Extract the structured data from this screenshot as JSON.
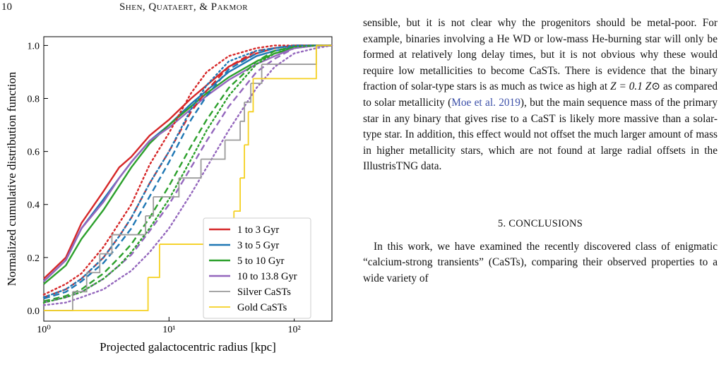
{
  "header": {
    "page_number": "10",
    "running_head": "Shen, Quataert, & Pakmor"
  },
  "chart_data": {
    "type": "line",
    "xlabel": "Projected galactocentric radius [kpc]",
    "ylabel": "Normalized cumulative distribution function",
    "xscale": "log",
    "xlim": [
      1,
      200
    ],
    "ylim": [
      -0.04,
      1.033
    ],
    "xticks": [
      {
        "value": 1,
        "label": "10⁰"
      },
      {
        "value": 10,
        "label": "10¹"
      },
      {
        "value": 100,
        "label": "10²"
      }
    ],
    "yticks": [
      {
        "value": 0,
        "label": "0.0"
      },
      0.2,
      0.4,
      0.6,
      0.8,
      {
        "value": 1,
        "label": "1.0"
      }
    ],
    "legend": "lower right",
    "x": [
      1,
      1.5,
      2,
      3,
      4,
      5,
      7,
      10,
      15,
      20,
      30,
      50,
      70,
      100,
      150,
      200
    ],
    "series": [
      {
        "name": "1 to 3 Gyr",
        "color": "#d62728",
        "dash": "solid",
        "values": [
          0.12,
          0.2,
          0.33,
          0.45,
          0.54,
          0.58,
          0.66,
          0.72,
          0.8,
          0.85,
          0.92,
          0.97,
          0.99,
          1,
          1,
          1
        ]
      },
      {
        "name": "3 to 5 Gyr",
        "color": "#1f77b4",
        "dash": "solid",
        "values": [
          0.11,
          0.19,
          0.31,
          0.42,
          0.5,
          0.56,
          0.64,
          0.7,
          0.78,
          0.83,
          0.9,
          0.96,
          0.98,
          0.995,
          1,
          1
        ]
      },
      {
        "name": "5 to 10 Gyr",
        "color": "#2ca02c",
        "dash": "solid",
        "values": [
          0.1,
          0.17,
          0.27,
          0.38,
          0.47,
          0.54,
          0.63,
          0.7,
          0.77,
          0.82,
          0.88,
          0.94,
          0.97,
          0.99,
          1,
          1
        ]
      },
      {
        "name": "10 to 13.8 Gyr",
        "color": "#9467bd",
        "dash": "solid",
        "values": [
          0.11,
          0.19,
          0.31,
          0.41,
          0.5,
          0.56,
          0.64,
          0.69,
          0.76,
          0.81,
          0.87,
          0.93,
          0.96,
          0.99,
          1,
          1
        ]
      },
      {
        "color": "#d62728",
        "dash": "dashed",
        "values": [
          0.05,
          0.08,
          0.12,
          0.2,
          0.28,
          0.35,
          0.48,
          0.6,
          0.75,
          0.83,
          0.92,
          0.98,
          0.99,
          1,
          1,
          1
        ]
      },
      {
        "color": "#1f77b4",
        "dash": "dashed",
        "values": [
          0.045,
          0.07,
          0.11,
          0.18,
          0.25,
          0.31,
          0.43,
          0.56,
          0.72,
          0.81,
          0.91,
          0.97,
          0.99,
          1,
          1,
          1
        ]
      },
      {
        "color": "#2ca02c",
        "dash": "dashed",
        "values": [
          0.035,
          0.055,
          0.08,
          0.14,
          0.2,
          0.25,
          0.35,
          0.47,
          0.62,
          0.72,
          0.84,
          0.94,
          0.98,
          0.995,
          1,
          1
        ]
      },
      {
        "color": "#9467bd",
        "dash": "dashed",
        "values": [
          0.03,
          0.05,
          0.07,
          0.12,
          0.17,
          0.21,
          0.3,
          0.4,
          0.54,
          0.64,
          0.77,
          0.9,
          0.95,
          0.99,
          1,
          1
        ]
      },
      {
        "color": "#d62728",
        "dash": "dotted",
        "values": [
          0.06,
          0.1,
          0.14,
          0.24,
          0.33,
          0.4,
          0.55,
          0.67,
          0.82,
          0.9,
          0.96,
          0.99,
          1,
          1,
          1,
          1
        ]
      },
      {
        "color": "#1f77b4",
        "dash": "dotted",
        "values": [
          0.05,
          0.08,
          0.12,
          0.2,
          0.28,
          0.35,
          0.48,
          0.6,
          0.76,
          0.85,
          0.94,
          0.98,
          0.99,
          1,
          1,
          1
        ]
      },
      {
        "color": "#2ca02c",
        "dash": "dotted",
        "values": [
          0.03,
          0.05,
          0.07,
          0.12,
          0.17,
          0.22,
          0.31,
          0.42,
          0.57,
          0.68,
          0.81,
          0.93,
          0.97,
          0.995,
          1,
          1
        ]
      },
      {
        "color": "#9467bd",
        "dash": "dotted",
        "values": [
          0.02,
          0.03,
          0.05,
          0.08,
          0.12,
          0.15,
          0.22,
          0.31,
          0.44,
          0.54,
          0.68,
          0.84,
          0.92,
          0.97,
          0.99,
          1
        ]
      },
      {
        "name": "Silver CaSTs",
        "color": "#9a9a9a",
        "dash": "solid",
        "step": "post",
        "x": [
          1,
          1.7,
          2.2,
          2.8,
          3.5,
          6.5,
          7.5,
          12,
          18,
          28,
          37,
          40,
          45,
          55,
          150,
          200
        ],
        "values": [
          0,
          0.071,
          0.143,
          0.214,
          0.286,
          0.357,
          0.429,
          0.5,
          0.571,
          0.643,
          0.714,
          0.786,
          0.857,
          0.929,
          1,
          1
        ]
      },
      {
        "name": "Gold CaSTs",
        "color": "#f5d020",
        "dash": "solid",
        "step": "post",
        "x": [
          1,
          6.8,
          8.4,
          33,
          37,
          40,
          43,
          47,
          150,
          200
        ],
        "values": [
          0,
          0.125,
          0.25,
          0.375,
          0.5,
          0.625,
          0.75,
          0.875,
          1,
          1
        ]
      }
    ]
  },
  "body": {
    "paragraph1": {
      "text_a": "sensible, but it is not clear why the progenitors should be metal-poor. For example, binaries involving a He WD or low-mass He-burning star will only be formed at relatively long delay times, but it is not obvious why these would require low metallicities to become CaSTs. There is evidence that the binary fraction of solar-type stars is as much as twice as high at ",
      "math": "Z = 0.1 Z⊙",
      "text_b": " as compared to solar metallicity (",
      "citation": "Moe et al. 2019",
      "text_c": "), but the main sequence mass of the primary star in any binary that gives rise to a CaST is likely more massive than a solar-type star. In addition, this effect would not offset the much larger amount of mass in higher metallicity stars, which are not found at large radial offsets in the IllustrisTNG data."
    },
    "section_heading": "5. CONCLUSIONS",
    "paragraph2": "In this work, we have examined the recently discovered class of enigmatic “calcium-strong transients” (CaSTs), comparing their observed properties to a wide variety of"
  }
}
